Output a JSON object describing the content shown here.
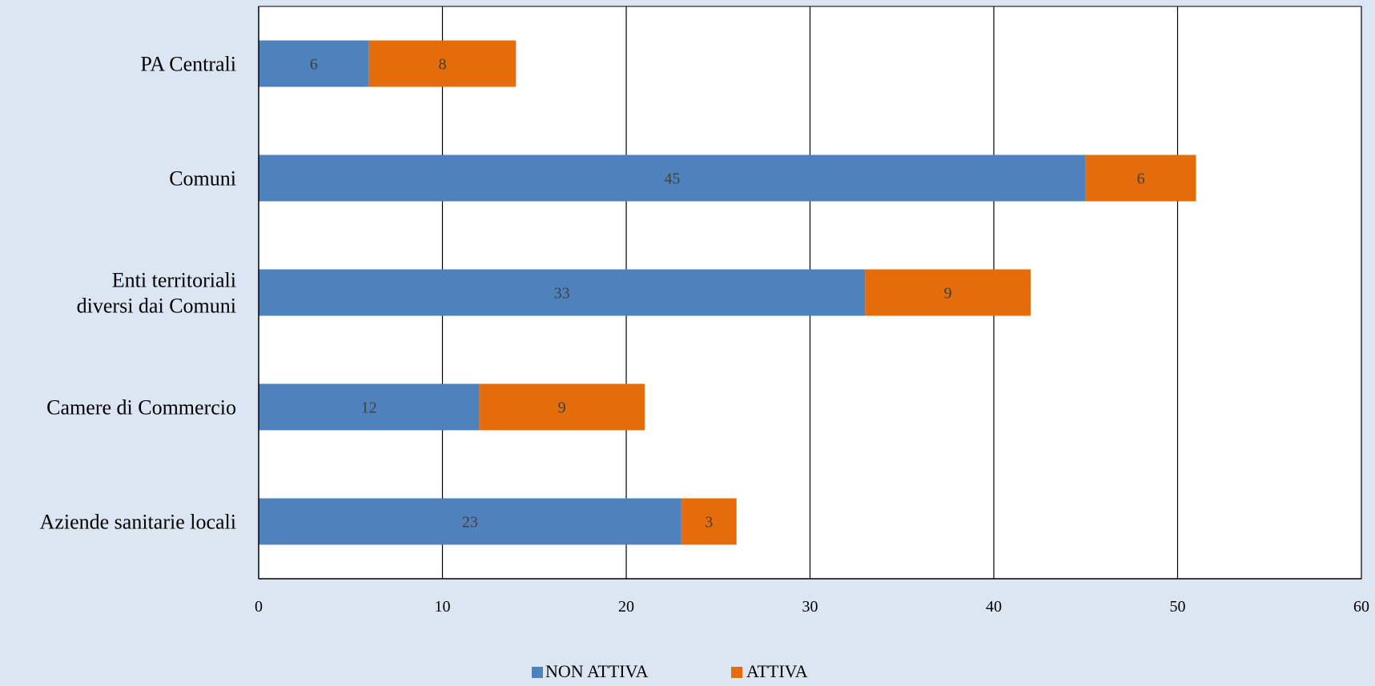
{
  "colors": {
    "background": "#dce6f2",
    "plot_background": "#ffffff",
    "non_attiva": "#4f81bd",
    "attiva": "#e46c0a",
    "gridline": "#000000",
    "data_label": "#404040"
  },
  "chart_data": {
    "type": "bar",
    "orientation": "horizontal",
    "stacked": true,
    "categories": [
      "PA Centrali",
      "Comuni",
      "Enti territoriali diversi dai Comuni",
      "Camere di Commercio",
      "Aziende sanitarie locali"
    ],
    "category_lines": [
      [
        "PA Centrali"
      ],
      [
        "Comuni"
      ],
      [
        "Enti territoriali",
        "diversi dai Comuni"
      ],
      [
        "Camere di Commercio"
      ],
      [
        "Aziende sanitarie locali"
      ]
    ],
    "series": [
      {
        "name": "NON ATTIVA",
        "values": [
          6,
          45,
          33,
          12,
          23
        ]
      },
      {
        "name": "ATTIVA",
        "values": [
          8,
          6,
          9,
          9,
          3
        ]
      }
    ],
    "xlim": [
      0,
      60
    ],
    "xticks": [
      0,
      10,
      20,
      30,
      40,
      50,
      60
    ],
    "title": "",
    "xlabel": "",
    "ylabel": "",
    "grid": "vertical",
    "legend": "bottom",
    "data_labels": true
  }
}
